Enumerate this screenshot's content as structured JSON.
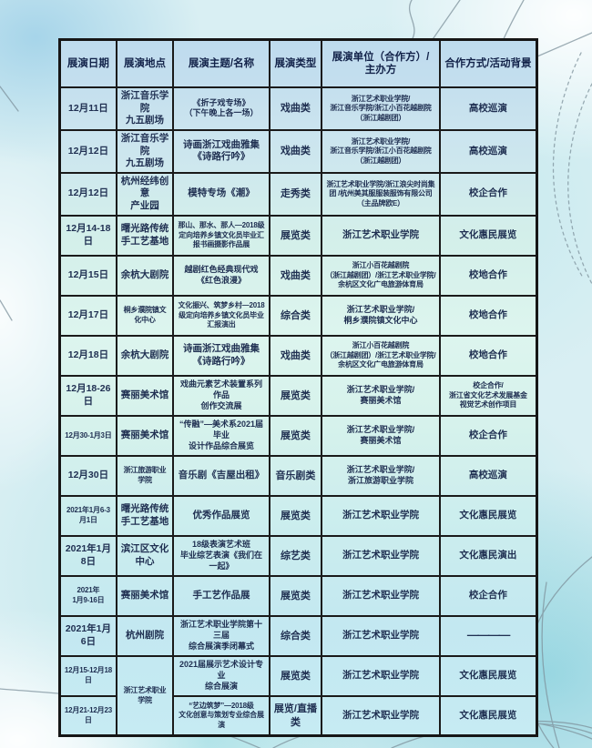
{
  "colors": {
    "table_border": "#1a1a1a",
    "header_text": "#13234a",
    "cell_text": "#203052",
    "background_teal": "#cdeef0",
    "sketch_line": "#7e929c"
  },
  "table": {
    "columns": [
      {
        "key": "date",
        "label": "展演日期"
      },
      {
        "key": "location",
        "label": "展演地点"
      },
      {
        "key": "theme",
        "label": "展演主题/名称"
      },
      {
        "key": "type",
        "label": "展演类型"
      },
      {
        "key": "organizer",
        "label": "展演单位（合作方）/\n主办方"
      },
      {
        "key": "cooperation",
        "label": "合作方式/活动背景"
      }
    ],
    "rows": [
      {
        "date": "12月11日",
        "location": "浙江音乐学院\n九五剧场",
        "theme": "《折子戏专场》\n（下午晚上各一场）",
        "type": "戏曲类",
        "organizer": "浙江艺术职业学院/\n浙江音乐学院/浙江小百花越剧院\n（浙江越剧团）",
        "cooperation": "高校巡演"
      },
      {
        "date": "12月12日",
        "location": "浙江音乐学院\n九五剧场",
        "theme": "诗画浙江戏曲雅集\n《诗路行吟》",
        "type": "戏曲类",
        "organizer": "浙江艺术职业学院/\n浙江音乐学院/浙江小百花越剧院\n（浙江越剧团）",
        "cooperation": "高校巡演"
      },
      {
        "date": "12月12日",
        "location": "杭州经纬创意\n产业园",
        "theme": "模特专场《潮》",
        "type": "走秀类",
        "organizer": "浙江艺术职业学院/浙江浪尖时尚集团 /杭州美其服服装服饰有限公司\n（主品牌欧E）",
        "cooperation": "校企合作"
      },
      {
        "date": "12月14-18日",
        "location": "曙光路传统\n手工艺基地",
        "theme": "那山、那水、那人—2018级定向培养乡镇文化员毕业汇报书画摄影作品展",
        "type": "展览类",
        "organizer": "浙江艺术职业学院",
        "cooperation": "文化惠民展览"
      },
      {
        "date": "12月15日",
        "location": "余杭大剧院",
        "theme": "越剧红色经典现代戏\n《红色浪漫》",
        "type": "戏曲类",
        "organizer": "浙江小百花越剧院\n（浙江越剧团）/浙江艺术职业学院/\n余杭区文化广电旅游体育局",
        "cooperation": "校地合作"
      },
      {
        "date": "12月17日",
        "location": "桐乡濮院镇文化中心",
        "theme": "文化振兴、筑梦乡村—2018级定向培养乡镇文化员毕业汇报演出",
        "type": "综合类",
        "organizer": "浙江艺术职业学院/\n桐乡濮院镇文化中心",
        "cooperation": "校地合作"
      },
      {
        "date": "12月18日",
        "location": "余杭大剧院",
        "theme": "诗画浙江戏曲雅集\n《诗路行吟》",
        "type": "戏曲类",
        "organizer": "浙江小百花越剧院\n（浙江越剧团）/浙江艺术职业学院/\n余杭区文化广电旅游体育局",
        "cooperation": "校地合作"
      },
      {
        "date": "12月18-26日",
        "location": "赛丽美术馆",
        "theme": "戏曲元素艺术装置系列作品\n创作交流展",
        "type": "展览类",
        "organizer": "浙江艺术职业学院/\n赛丽美术馆",
        "cooperation": "校企合作/\n浙江省文化艺术发展基金\n视觉艺术创作项目"
      },
      {
        "date": "12月30-1月3日",
        "location": "赛丽美术馆",
        "theme": "“传融”—美术系2021届毕业\n设计作品综合展览",
        "type": "展览类",
        "organizer": "浙江艺术职业学院/\n赛丽美术馆",
        "cooperation": "校企合作"
      },
      {
        "date": "12月30日",
        "location": "浙江旅游职业学院",
        "theme": "音乐剧《吉屋出租》",
        "type": "音乐剧类",
        "organizer": "浙江艺术职业学院/\n浙江旅游职业学院",
        "cooperation": "高校巡演"
      },
      {
        "date": "2021年1月6-3月1日",
        "location": "曙光路传统\n手工艺基地",
        "theme": "优秀作品展览",
        "type": "展览类",
        "organizer": "浙江艺术职业学院",
        "cooperation": "文化惠民展览"
      },
      {
        "date": "2021年1月8日",
        "location": "滨江区文化中心",
        "theme": "18级表演艺术班\n毕业综艺表演《我们在一起》",
        "type": "综艺类",
        "organizer": "浙江艺术职业学院",
        "cooperation": "文化惠民演出"
      },
      {
        "date": "2021年\n1月9-16日",
        "location": "赛丽美术馆",
        "theme": "手工艺作品展",
        "type": "展览类",
        "organizer": "浙江艺术职业学院",
        "cooperation": "校企合作"
      },
      {
        "date": "2021年1月6日",
        "location": "杭州剧院",
        "theme": "浙江艺术职业学院第十三届\n综合展演季闭幕式",
        "type": "综合类",
        "organizer": "浙江艺术职业学院",
        "cooperation": "————"
      },
      {
        "date": "12月15-12月18日",
        "location": "浙江艺术职业学院",
        "location_rowspan": 2,
        "theme": "2021届展示艺术设计专业\n综合展演",
        "type": "展览类",
        "organizer": "浙江艺术职业学院",
        "cooperation": "文化惠民展览"
      },
      {
        "date": "12月21-12月23日",
        "location": null,
        "theme": "“艺边筑梦”—2018级\n文化创意与策划专业综合展演",
        "type": "展览/直播类",
        "organizer": "浙江艺术职业学院",
        "cooperation": "文化惠民展览"
      }
    ]
  }
}
